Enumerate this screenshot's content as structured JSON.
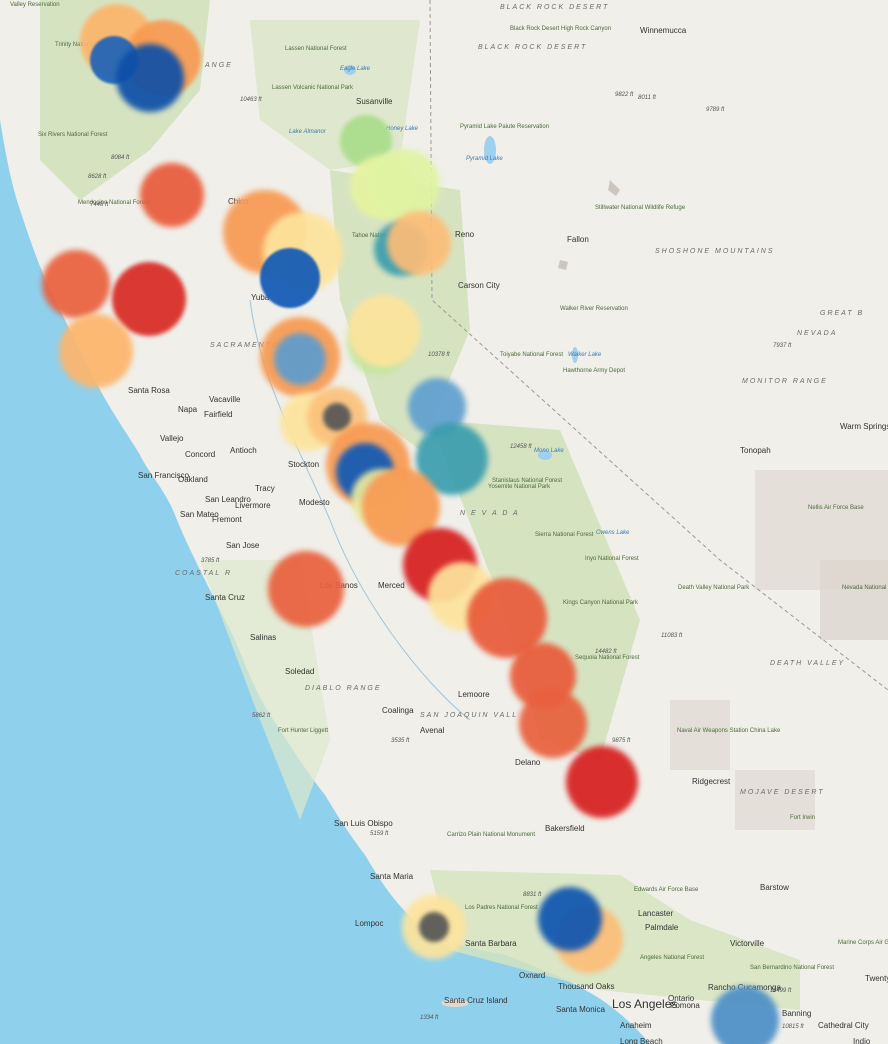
{
  "labels": [
    {
      "text": "Valley Reservation",
      "cls": "park"
    },
    {
      "text": "Trinity National Forest",
      "cls": "park"
    },
    {
      "text": "Six Rivers National Forest",
      "cls": "park"
    },
    {
      "text": "Mendocino National Forest",
      "cls": "park"
    },
    {
      "text": "Lassen National Forest",
      "cls": "park"
    },
    {
      "text": "Lassen Volcanic National Park",
      "cls": "park"
    },
    {
      "text": "Tahoe National Forest",
      "cls": "park"
    },
    {
      "text": "Stanislaus National Forest",
      "cls": "park"
    },
    {
      "text": "Yosemite National Park",
      "cls": "park"
    },
    {
      "text": "Inyo National Forest",
      "cls": "park"
    },
    {
      "text": "Sierra National Forest",
      "cls": "park"
    },
    {
      "text": "Sequoia National Forest",
      "cls": "park"
    },
    {
      "text": "Kings Canyon National Park",
      "cls": "park"
    },
    {
      "text": "Death Valley National Park",
      "cls": "park"
    },
    {
      "text": "Toiyabe National Forest",
      "cls": "park"
    },
    {
      "text": "Hawthorne Army Depot",
      "cls": "park"
    },
    {
      "text": "Nellis Air Force Base",
      "cls": "park"
    },
    {
      "text": "Nevada National Security Site",
      "cls": "park"
    },
    {
      "text": "Naval Air Weapons Station China Lake",
      "cls": "park"
    },
    {
      "text": "Fort Irwin",
      "cls": "park"
    },
    {
      "text": "Edwards Air Force Base",
      "cls": "park"
    },
    {
      "text": "Los Padres National Forest",
      "cls": "park"
    },
    {
      "text": "Angeles National Forest",
      "cls": "park"
    },
    {
      "text": "San Bernardino National Forest",
      "cls": "park"
    },
    {
      "text": "Marine Corps Air Ground Combat Center Twentynine Palms",
      "cls": "park"
    },
    {
      "text": "Carrizo Plain National Monument",
      "cls": "park"
    },
    {
      "text": "Fort Hunter Liggett",
      "cls": "park"
    },
    {
      "text": "Black Rock Desert High Rock Canyon",
      "cls": "park"
    },
    {
      "text": "Pyramid Lake Paiute Reservation",
      "cls": "park"
    },
    {
      "text": "Stillwater National Wildlife Refuge",
      "cls": "park"
    },
    {
      "text": "Walker River Reservation",
      "cls": "park"
    },
    {
      "text": "BLACK ROCK DESERT",
      "cls": "region"
    },
    {
      "text": "BLACK ROCK DESERT",
      "cls": "region"
    },
    {
      "text": "SHOSHONE MOUNTAINS",
      "cls": "region"
    },
    {
      "text": "GREAT B",
      "cls": "region"
    },
    {
      "text": "MONITOR RANGE",
      "cls": "region"
    },
    {
      "text": "NEVADA",
      "cls": "region"
    },
    {
      "text": "SACRAMENTO VA",
      "cls": "region"
    },
    {
      "text": "COASTAL R",
      "cls": "region"
    },
    {
      "text": "DIABLO RANGE",
      "cls": "region"
    },
    {
      "text": "SAN JOAQUIN VALL",
      "cls": "region"
    },
    {
      "text": "MOJAVE DESERT",
      "cls": "region"
    },
    {
      "text": "ANGE",
      "cls": "region"
    },
    {
      "text": "N E V A D A",
      "cls": "region"
    },
    {
      "text": "DEATH VALLEY",
      "cls": "region"
    },
    {
      "text": "Winnemucca",
      "cls": "city"
    },
    {
      "text": "Susanville",
      "cls": "city"
    },
    {
      "text": "Reno",
      "cls": "city"
    },
    {
      "text": "Carson City",
      "cls": "city"
    },
    {
      "text": "Fallon",
      "cls": "city"
    },
    {
      "text": "Chico",
      "cls": "city"
    },
    {
      "text": "Yuba",
      "cls": "city"
    },
    {
      "text": "Santa Rosa",
      "cls": "city"
    },
    {
      "text": "Napa",
      "cls": "city"
    },
    {
      "text": "Vacaville",
      "cls": "city"
    },
    {
      "text": "Fairfield",
      "cls": "city"
    },
    {
      "text": "Vallejo",
      "cls": "city"
    },
    {
      "text": "Concord",
      "cls": "city"
    },
    {
      "text": "Antioch",
      "cls": "city"
    },
    {
      "text": "San Francisco",
      "cls": "city"
    },
    {
      "text": "Oakland",
      "cls": "city"
    },
    {
      "text": "San Leandro",
      "cls": "city"
    },
    {
      "text": "San Mateo",
      "cls": "city"
    },
    {
      "text": "Fremont",
      "cls": "city"
    },
    {
      "text": "Livermore",
      "cls": "city"
    },
    {
      "text": "Tracy",
      "cls": "city"
    },
    {
      "text": "Stockton",
      "cls": "city"
    },
    {
      "text": "Modesto",
      "cls": "city"
    },
    {
      "text": "San Jose",
      "cls": "city"
    },
    {
      "text": "Santa Cruz",
      "cls": "city"
    },
    {
      "text": "Salinas",
      "cls": "city"
    },
    {
      "text": "Soledad",
      "cls": "city"
    },
    {
      "text": "Merced",
      "cls": "city"
    },
    {
      "text": "Los Banos",
      "cls": "city"
    },
    {
      "text": "Lemoore",
      "cls": "city"
    },
    {
      "text": "Coalinga",
      "cls": "city"
    },
    {
      "text": "Avenal",
      "cls": "city"
    },
    {
      "text": "Delano",
      "cls": "city"
    },
    {
      "text": "Bakersfield",
      "cls": "city"
    },
    {
      "text": "Ridgecrest",
      "cls": "city"
    },
    {
      "text": "Tonopah",
      "cls": "city"
    },
    {
      "text": "Warm Springs",
      "cls": "city"
    },
    {
      "text": "San Luis Obispo",
      "cls": "city"
    },
    {
      "text": "Santa Maria",
      "cls": "city"
    },
    {
      "text": "Lompoc",
      "cls": "city"
    },
    {
      "text": "Santa Barbara",
      "cls": "city"
    },
    {
      "text": "Oxnard",
      "cls": "city"
    },
    {
      "text": "Thousand Oaks",
      "cls": "city"
    },
    {
      "text": "Santa Monica",
      "cls": "city"
    },
    {
      "text": "Los Angeles",
      "cls": "big"
    },
    {
      "text": "Anaheim",
      "cls": "city"
    },
    {
      "text": "Long Beach",
      "cls": "city"
    },
    {
      "text": "Ontario",
      "cls": "city"
    },
    {
      "text": "Pomona",
      "cls": "city"
    },
    {
      "text": "Rancho Cucamonga",
      "cls": "city"
    },
    {
      "text": "Banning",
      "cls": "city"
    },
    {
      "text": "Cathedral City",
      "cls": "city"
    },
    {
      "text": "Indio",
      "cls": "city"
    },
    {
      "text": "Lancaster",
      "cls": "city"
    },
    {
      "text": "Palmdale",
      "cls": "city"
    },
    {
      "text": "Victorville",
      "cls": "city"
    },
    {
      "text": "Barstow",
      "cls": "city"
    },
    {
      "text": "Twentyn Palm",
      "cls": "city"
    },
    {
      "text": "Santa Cruz Island",
      "cls": "city"
    },
    {
      "text": "Eagle Lake",
      "cls": "water"
    },
    {
      "text": "Honey Lake",
      "cls": "water"
    },
    {
      "text": "Pyramid Lake",
      "cls": "water"
    },
    {
      "text": "Lake Almanor",
      "cls": "water"
    },
    {
      "text": "Walker Lake",
      "cls": "water"
    },
    {
      "text": "Mono Lake",
      "cls": "water"
    },
    {
      "text": "Owens Lake",
      "cls": "water"
    },
    {
      "text": "10463 ft",
      "cls": "elev"
    },
    {
      "text": "8084 ft",
      "cls": "elev"
    },
    {
      "text": "7448 ft",
      "cls": "elev"
    },
    {
      "text": "8628 ft",
      "cls": "elev"
    },
    {
      "text": "9822 ft",
      "cls": "elev"
    },
    {
      "text": "8011 ft",
      "cls": "elev"
    },
    {
      "text": "9789 ft",
      "cls": "elev"
    },
    {
      "text": "10378 ft",
      "cls": "elev"
    },
    {
      "text": "12458 ft",
      "cls": "elev"
    },
    {
      "text": "7937 ft",
      "cls": "elev"
    },
    {
      "text": "3785 ft",
      "cls": "elev"
    },
    {
      "text": "14482 ft",
      "cls": "elev"
    },
    {
      "text": "11083 ft",
      "cls": "elev"
    },
    {
      "text": "9875 ft",
      "cls": "elev"
    },
    {
      "text": "5862 ft",
      "cls": "elev"
    },
    {
      "text": "3535 ft",
      "cls": "elev"
    },
    {
      "text": "8831 ft",
      "cls": "elev"
    },
    {
      "text": "11499 ft",
      "cls": "elev"
    },
    {
      "text": "10815 ft",
      "cls": "elev"
    },
    {
      "text": "1334 ft",
      "cls": "elev"
    },
    {
      "text": "5159 ft",
      "cls": "elev"
    }
  ],
  "markers": [
    {
      "color": "#fdb56b"
    },
    {
      "color": "#f89a52"
    },
    {
      "color": "#1d63b8"
    },
    {
      "color": "#0d4fa8"
    },
    {
      "color": "#e95a3a"
    },
    {
      "color": "#f89a52"
    },
    {
      "color": "#fde49c"
    },
    {
      "color": "#1059b5"
    },
    {
      "color": "#a9dd8a"
    },
    {
      "color": "#e6f3a0"
    },
    {
      "color": "#dff4a2"
    },
    {
      "color": "#3a9dae"
    },
    {
      "color": "#fdbd77"
    },
    {
      "color": "#e9603d"
    },
    {
      "color": "#d82a23"
    },
    {
      "color": "#fdb56b"
    },
    {
      "color": "#f89a52"
    },
    {
      "color": "#5e9ccd"
    },
    {
      "color": "#c3e6a0"
    },
    {
      "color": "#fde49c"
    },
    {
      "color": "#fde49c"
    },
    {
      "color": "#fbc27c"
    },
    {
      "color": "#555555"
    },
    {
      "color": "#5f9fcf"
    },
    {
      "color": "#3a9dae"
    },
    {
      "color": "#f89a52"
    },
    {
      "color": "#1059b5"
    },
    {
      "color": "#e9e9a0"
    },
    {
      "color": "#f89a52"
    },
    {
      "color": "#e9603d"
    },
    {
      "color": "#d71e1f"
    },
    {
      "color": "#fde49c"
    },
    {
      "color": "#e95a3a"
    },
    {
      "color": "#e95a3a"
    },
    {
      "color": "#e9603d"
    },
    {
      "color": "#d71e1f"
    },
    {
      "color": "#fdbd77"
    },
    {
      "color": "#0d55b0"
    },
    {
      "color": "#fde49c"
    },
    {
      "color": "#555555"
    },
    {
      "color": "#4c8fc8"
    }
  ]
}
